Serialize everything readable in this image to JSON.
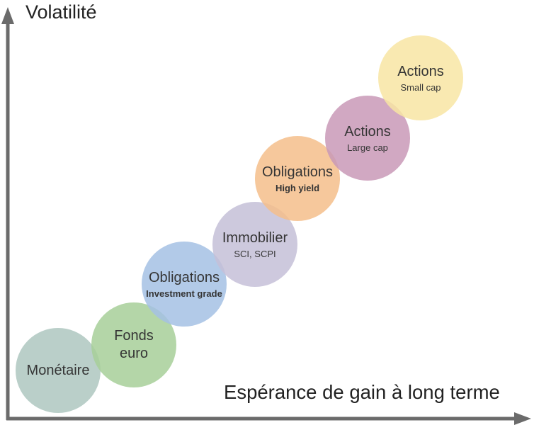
{
  "diagram": {
    "y_axis_label": "Volatilité",
    "x_axis_label": "Espérance de gain à long terme",
    "colors": {
      "axis": "#6b6b6b"
    },
    "assets": [
      {
        "name": "Monétaire",
        "detail": "",
        "detail_bold": false,
        "color": "#aec7c0"
      },
      {
        "name": "Fonds\neuro",
        "detail": "",
        "detail_bold": false,
        "color": "#a8d09a"
      },
      {
        "name": "Obligations",
        "detail": "Investment grade",
        "detail_bold": true,
        "color": "#a5c1e4"
      },
      {
        "name": "Immobilier",
        "detail": "SCI, SCPI",
        "detail_bold": false,
        "color": "#c5c0d8"
      },
      {
        "name": "Obligations",
        "detail": "High yield",
        "detail_bold": true,
        "color": "#f5bf8b"
      },
      {
        "name": "Actions",
        "detail": "Large cap",
        "detail_bold": false,
        "color": "#c99ab8"
      },
      {
        "name": "Actions",
        "detail": "Small cap",
        "detail_bold": false,
        "color": "#f8e6a4"
      }
    ]
  }
}
